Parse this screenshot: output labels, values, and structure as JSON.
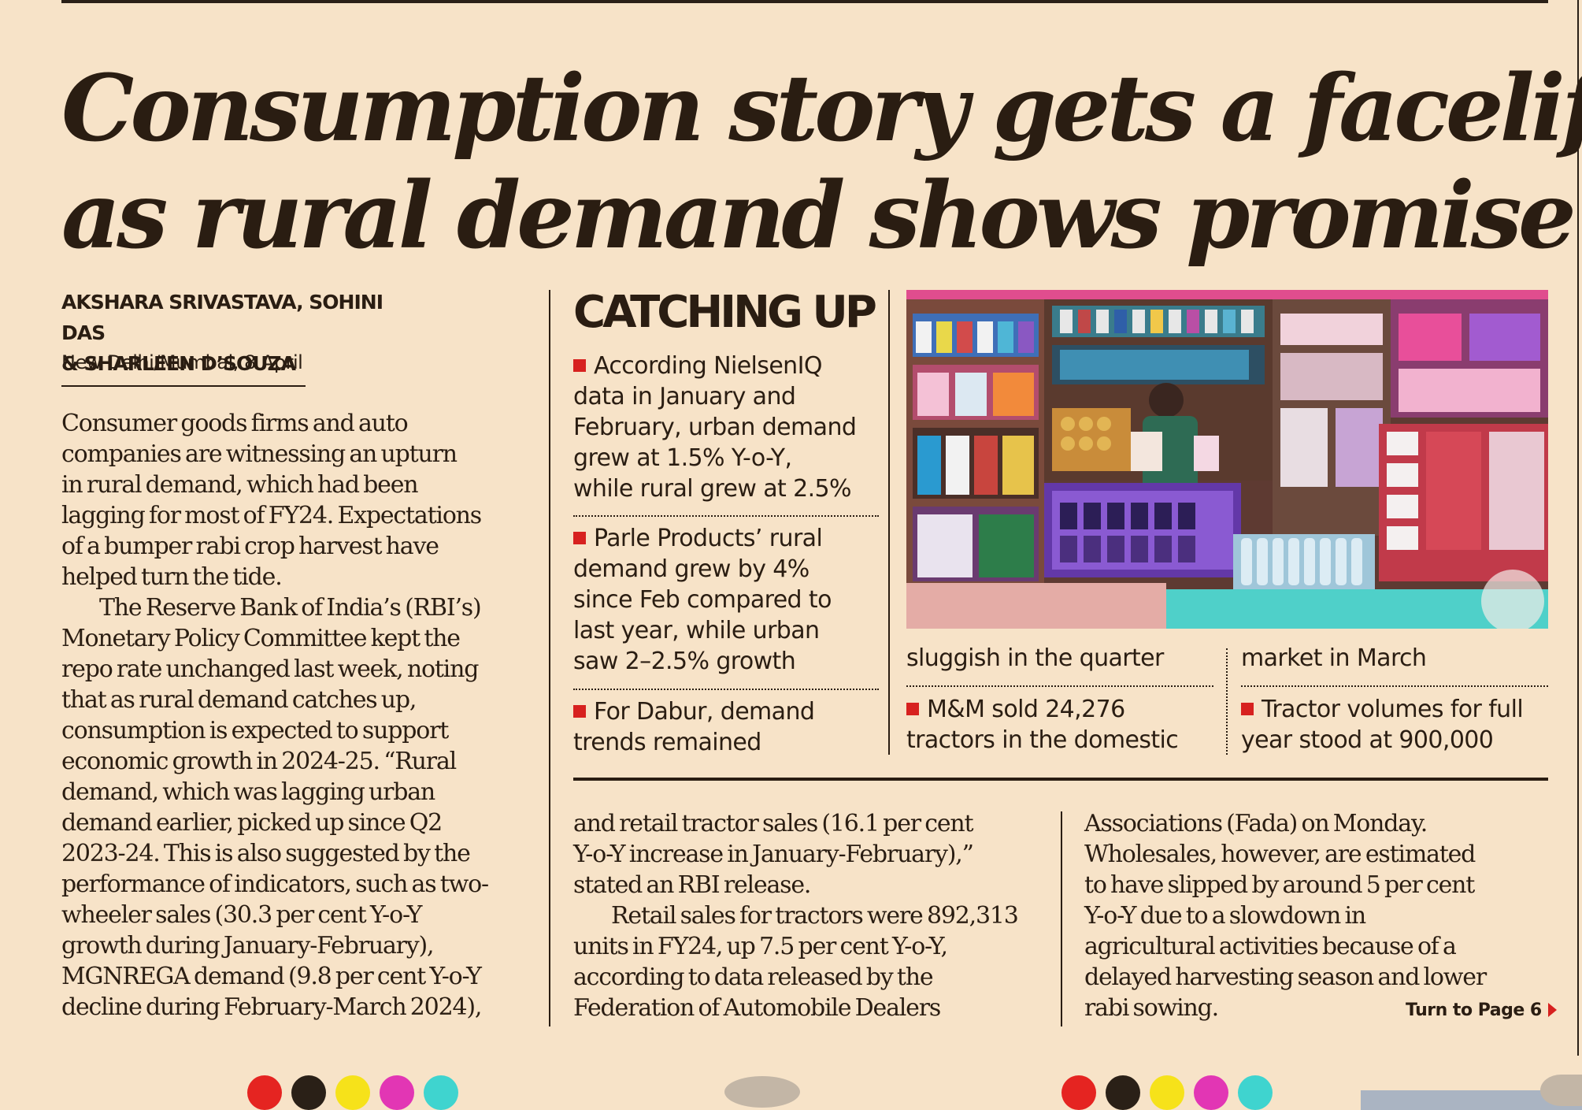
{
  "headline": {
    "line1": "Consumption story gets a facelift",
    "line2": "as rural demand shows promise"
  },
  "byline": {
    "line1": "AKSHARA SRIVASTAVA, SOHINI DAS",
    "line2": "& SHARLEEN D’SOUZA",
    "dateline": "New Delhi/Mumbai, 8 April"
  },
  "article": {
    "col1": [
      "Consumer goods firms and auto",
      "companies are witnessing an upturn",
      "in rural demand, which had been",
      "lagging for most of FY24. Expectations",
      "of a bumper rabi crop harvest have",
      "helped turn the tide.",
      "The Reserve Bank of India’s (RBI’s)",
      "Monetary Policy Committee kept the",
      "repo rate unchanged last week, noting",
      "that as rural demand catches up,",
      "consumption is expected to support",
      "economic growth in 2024-25. “Rural",
      "demand, which was lagging urban",
      "demand earlier, picked up since Q2",
      "2023-24. This is also suggested by the",
      "performance of indicators, such as two-",
      "wheeler sales (30.3 per cent Y-o-Y",
      "growth during January-February),",
      "MGNREGA demand (9.8 per cent Y-o-Y",
      "decline during February-March 2024),"
    ],
    "col2": [
      "and retail tractor sales (16.1 per cent",
      "Y-o-Y increase in January-February),”",
      "stated an RBI release.",
      "Retail sales for tractors were 892,313",
      "units in FY24, up 7.5 per cent Y-o-Y,",
      "according to data released by the",
      "Federation of Automobile Dealers"
    ],
    "col3": [
      "Associations (Fada) on Monday.",
      "Wholesales, however, are estimated",
      "to have slipped by around 5 per cent",
      "Y-o-Y due to a slowdown in",
      "agricultural activities because of a",
      "delayed harvesting season and lower",
      "rabi sowing."
    ],
    "jump": "Turn to Page 6"
  },
  "sidebar": {
    "title": "CATCHING UP",
    "bullet1": [
      "According NielsenIQ",
      "data in January and",
      "February, urban demand",
      "grew at 1.5% Y-o-Y,",
      "while rural grew at 2.5%"
    ],
    "bullet2": [
      "Parle Products’ rural",
      "demand grew by 4%",
      "since Feb compared to",
      "last year, while urban",
      "saw 2–2.5% growth"
    ],
    "bullet3": [
      "For Dabur, demand",
      "trends remained"
    ],
    "bullet3_cont": [
      "sluggish in the quarter"
    ],
    "bullet4": [
      "M&M sold 24,276",
      "tractors in the domestic"
    ],
    "bullet4_cont": [
      "market in March"
    ],
    "bullet5": [
      "Tractor volumes for full",
      "year stood at 900,000"
    ]
  },
  "colors": {
    "paper": "#f7e3c8",
    "ink": "#2a1d12",
    "bullet_red": "#d7211f"
  },
  "registration_marks": [
    "#e52421",
    "#2a2017",
    "#f6e21a",
    "#e236b4",
    "#3fd4cf"
  ]
}
